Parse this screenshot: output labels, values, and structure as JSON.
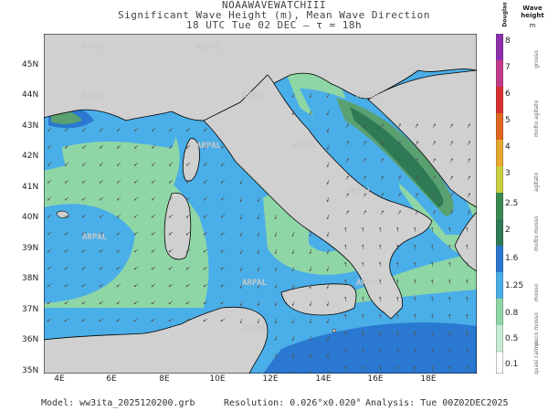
{
  "header": {
    "line1": "NOAAWAVEWATCHIII",
    "line2": "Significant Wave Height (m), Mean Wave Direction",
    "line3": "18 UTC Tue 02 DEC  –  τ = 18h"
  },
  "watermark": "ARPAL",
  "map": {
    "lat_labels": [
      "45N",
      "44N",
      "43N",
      "42N",
      "41N",
      "40N",
      "39N",
      "38N",
      "37N",
      "36N",
      "35N"
    ],
    "lon_labels": [
      "4E",
      "6E",
      "8E",
      "10E",
      "12E",
      "14E",
      "16E",
      "18E"
    ],
    "colors": {
      "land": "#d0d0d0",
      "sea_very_calm": "#ffffff",
      "sea_slight": "#8fd6a6",
      "sea_moderate": "#4aaee8",
      "sea_rough": "#2a78d0",
      "sea_very_rough": "#2d7a55",
      "coast": "#000000"
    }
  },
  "legend": {
    "header_left": "Douglas",
    "header_right": "Wave height",
    "header_unit": "m",
    "ticks": [
      "8",
      "7",
      "6",
      "5",
      "4",
      "3",
      "2.5",
      "2",
      "1.6",
      "1.25",
      "0.8",
      "0.5",
      "0.1"
    ],
    "categories": [
      "grosso",
      "molto agitato",
      "agitato",
      "molto mosso",
      "mosso",
      "poco mosso",
      "quasi calmo"
    ]
  },
  "footer": {
    "model": "Model:  ww3ita_2025120200.grb",
    "resolution": "Resolution: 0.026°x0.020°",
    "analysis": "Analysis: Tue 00Z02DEC2025"
  }
}
